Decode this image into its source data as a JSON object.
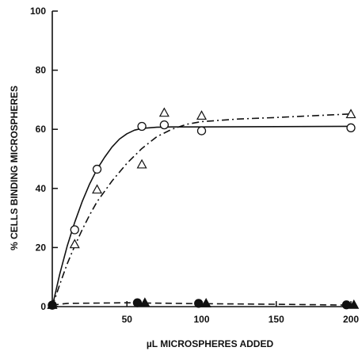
{
  "chart_data": {
    "type": "scatter",
    "title": "",
    "xlabel": "µL MICROSPHERES ADDED",
    "ylabel": "% CELLS BINDING MICROSPHERES",
    "xlim": [
      0,
      200
    ],
    "ylim": [
      0,
      100
    ],
    "xticks": [
      50,
      100,
      150,
      200
    ],
    "yticks": [
      0,
      20,
      40,
      60,
      80,
      100
    ],
    "grid": false,
    "legend": "none",
    "series": [
      {
        "marker": "open-circle",
        "line": "solid",
        "points": [
          [
            0,
            0.5
          ],
          [
            15,
            26
          ],
          [
            30,
            46.5
          ],
          [
            60,
            61
          ],
          [
            75,
            61.5
          ],
          [
            100,
            59.5
          ],
          [
            200,
            60.5
          ]
        ],
        "curve": [
          [
            0,
            0
          ],
          [
            5,
            11
          ],
          [
            10,
            20.5
          ],
          [
            15,
            28.5
          ],
          [
            20,
            35.5
          ],
          [
            25,
            41.5
          ],
          [
            30,
            46.5
          ],
          [
            35,
            50.5
          ],
          [
            40,
            54
          ],
          [
            45,
            56.7
          ],
          [
            50,
            58.5
          ],
          [
            55,
            59.7
          ],
          [
            60,
            60.3
          ],
          [
            70,
            60.7
          ],
          [
            80,
            60.8
          ],
          [
            100,
            60.8
          ],
          [
            150,
            60.9
          ],
          [
            200,
            61
          ]
        ]
      },
      {
        "marker": "open-triangle",
        "line": "dash-dot",
        "points": [
          [
            0,
            0.5
          ],
          [
            15,
            21
          ],
          [
            30,
            39.5
          ],
          [
            60,
            48
          ],
          [
            75,
            65.5
          ],
          [
            100,
            64.5
          ],
          [
            200,
            65
          ]
        ],
        "curve": [
          [
            0,
            0
          ],
          [
            5,
            7.5
          ],
          [
            10,
            14.5
          ],
          [
            15,
            20.5
          ],
          [
            20,
            26
          ],
          [
            25,
            31
          ],
          [
            30,
            35.5
          ],
          [
            40,
            42.5
          ],
          [
            50,
            48.5
          ],
          [
            60,
            53.5
          ],
          [
            70,
            57.5
          ],
          [
            80,
            60
          ],
          [
            90,
            61.7
          ],
          [
            100,
            62.6
          ],
          [
            125,
            63.5
          ],
          [
            150,
            64
          ],
          [
            175,
            64.6
          ],
          [
            200,
            65.2
          ]
        ]
      },
      {
        "marker": "filled-circle",
        "line": "dashed",
        "points": [
          [
            0,
            0.5
          ],
          [
            57,
            1.3
          ],
          [
            98,
            1.1
          ],
          [
            197,
            0.6
          ]
        ],
        "curve": [
          [
            0,
            0.5
          ],
          [
            10,
            1.1
          ],
          [
            50,
            1.3
          ],
          [
            100,
            1.0
          ],
          [
            150,
            0.8
          ],
          [
            200,
            0.5
          ]
        ]
      },
      {
        "marker": "filled-triangle",
        "line": "dashed",
        "points": [
          [
            0,
            0.5
          ],
          [
            62,
            1.2
          ],
          [
            103,
            1.0
          ],
          [
            202,
            0.5
          ]
        ],
        "curve": []
      }
    ]
  }
}
